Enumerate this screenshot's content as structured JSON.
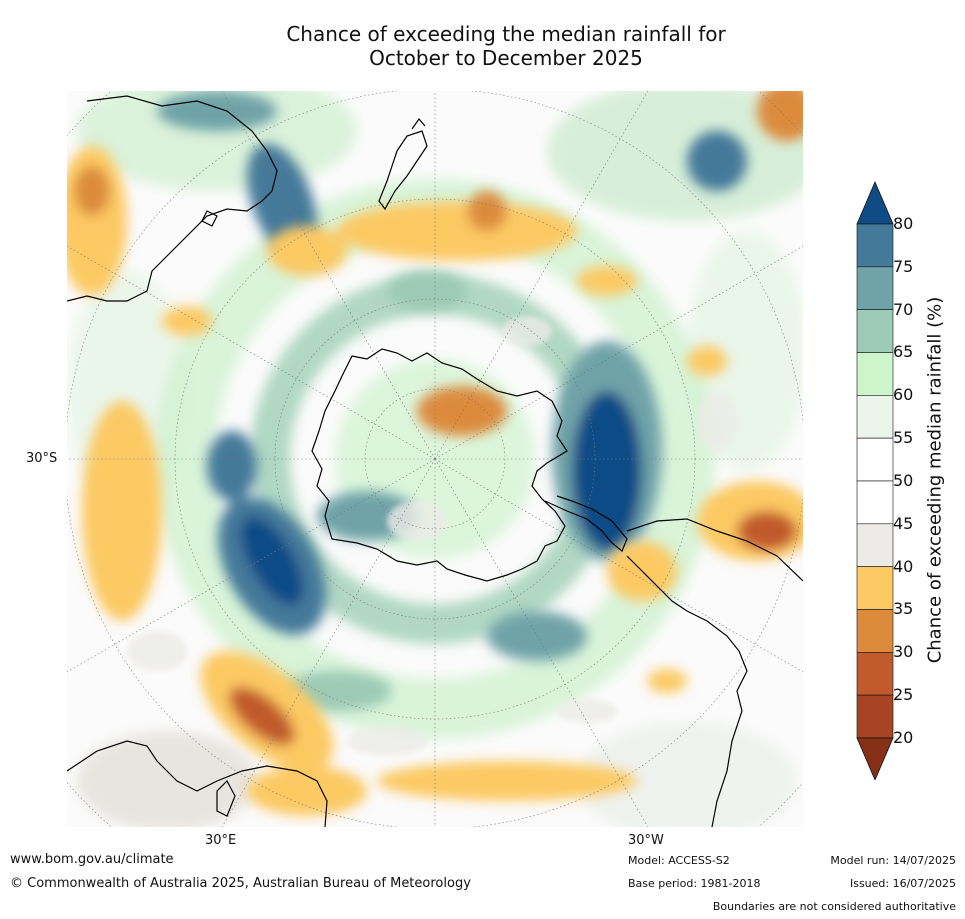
{
  "title_line1": "Chance of exceeding the median rainfall for",
  "title_line2": "October to December 2025",
  "map_labels": {
    "lat_30s": "30°S",
    "lon_30e": "30°E",
    "lon_30w": "30°W"
  },
  "colorbar": {
    "label": "Chance of exceeding median rainfall (%)",
    "ticks": [
      "80",
      "75",
      "70",
      "65",
      "60",
      "55",
      "50",
      "45",
      "40",
      "35",
      "30",
      "25",
      "20"
    ],
    "colors": [
      "#0f4c86",
      "#45799a",
      "#6fa3a8",
      "#9ccab6",
      "#ccf5cc",
      "#ebf5eb",
      "#ffffff",
      "#ffffff",
      "#ecebe8",
      "#fcc964",
      "#dc8b3d",
      "#c15a2c",
      "#a64424",
      "#873018"
    ]
  },
  "footer": {
    "website": "www.bom.gov.au/climate",
    "copyright": "© Commonwealth of Australia 2025, Australian Bureau of Meteorology",
    "model": "Model: ACCESS-S2",
    "base_period": "Base period: 1981-2018",
    "model_run": "Model run: 14/07/2025",
    "issued": "Issued: 16/07/2025",
    "boundaries": "Boundaries are not considered authoritative"
  }
}
